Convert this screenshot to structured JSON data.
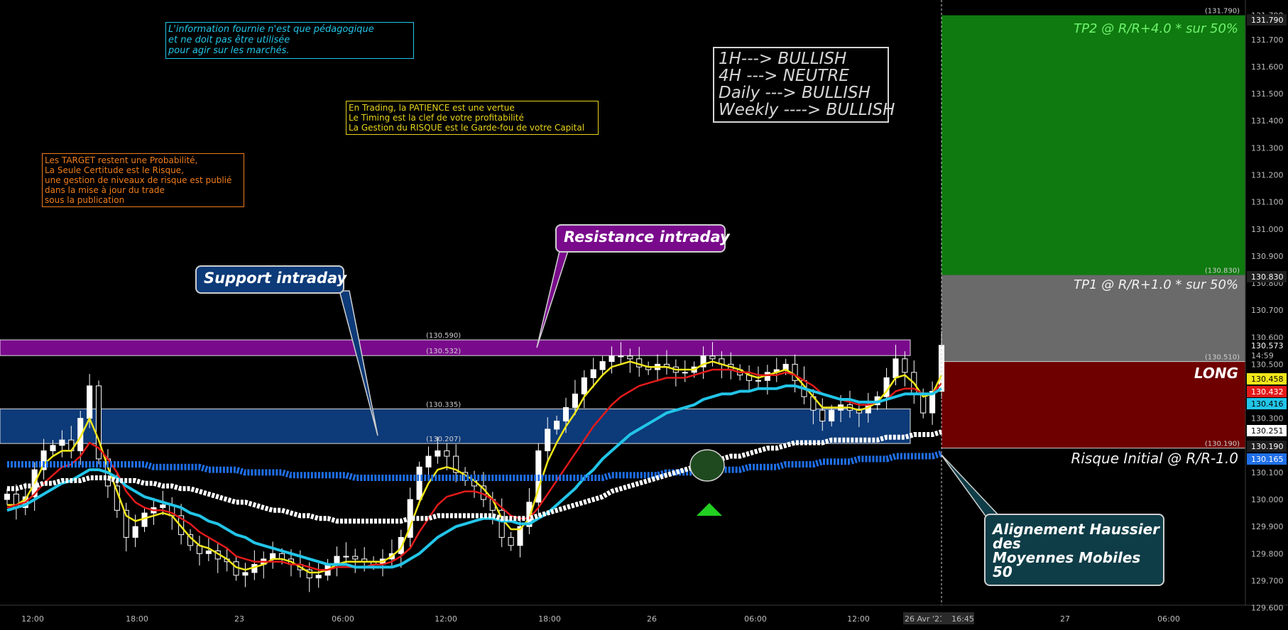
{
  "notes": {
    "cyan": "L'information fournie n'est que pédagogique\net ne doit pas être utilisée\npour agir sur les marchés.",
    "yellow": "En Trading, la PATIENCE est une vertue\nLe Timing est la clef de votre profitabilité\nLa Gestion du RISQUE est le Garde-fou de votre Capital",
    "orange": "Les TARGET restent une Probabilité,\nLa Seule Certitude est le Risque,\nune gestion de niveaux de risque est publié\ndans la mise à jour du trade\nsous la publication",
    "trend": "1H---> BULLISH\n4H ---> NEUTRE\nDaily ---> BULLISH\nWeekly ----> BULLISH"
  },
  "callouts": {
    "support": "Support intraday",
    "resistance": "Resistance intraday",
    "alignment": "Alignement Haussier\ndes\nMoyennes Mobiles\n50"
  },
  "zones": {
    "tp2": "TP2 @ R/R+4.0 * sur 50%",
    "tp1": "TP1 @ R/R+1.0 * sur 50%",
    "long": "LONG",
    "risk": "Risque Initial @ R/R-1.0"
  },
  "colors": {
    "background": "#000000",
    "tp2_zone": "#0f7a0f",
    "tp1_zone": "#6a6a6a",
    "risk_zone": "#6e0000",
    "resistance_zone": "#7a0a8c",
    "support_zone": "#0d3a78",
    "candle": "#ffffff",
    "ema_yellow": "#f2e71a",
    "ema_red": "#e41a1a",
    "ema_cyan": "#22c5e8",
    "ma_blue": "#1f6fe8",
    "ma_white": "#ffffff"
  },
  "chart_data": {
    "type": "line",
    "yaxis": {
      "range": [
        129.57,
        131.815
      ],
      "ticks": [
        "129.600",
        "129.700",
        "129.800",
        "129.900",
        "130.000",
        "130.100",
        "130.200",
        "130.300",
        "130.400",
        "130.500",
        "130.600",
        "130.700",
        "130.800",
        "130.900",
        "131.000",
        "131.100",
        "131.200",
        "131.300",
        "131.400",
        "131.500",
        "131.600",
        "131.700",
        "131.790"
      ]
    },
    "xaxis": {
      "ticks": [
        "12:00",
        "18:00",
        "23",
        "06:00",
        "12:00",
        "18:00",
        "26",
        "06:00",
        "12:00",
        "26 Avr '21",
        "16:45",
        "27",
        "06:00"
      ]
    },
    "price_tags": [
      {
        "value": "131.790",
        "color": "#1e1e1e",
        "text_color": "#ffffff"
      },
      {
        "value": "130.830",
        "color": "#1e1e1e",
        "text_color": "#ffffff"
      },
      {
        "value": "130.573",
        "color": "#000000",
        "text_color": "#ffffff"
      },
      {
        "value": "14:59",
        "color": "#000000",
        "text_color": "#bbbbbb"
      },
      {
        "value": "130.458",
        "color": "#f2e71a",
        "text_color": "#000000"
      },
      {
        "value": "130.432",
        "color": "#e41a1a",
        "text_color": "#ffffff"
      },
      {
        "value": "130.416",
        "color": "#22c5e8",
        "text_color": "#000000"
      },
      {
        "value": "130.251",
        "color": "#ffffff",
        "text_color": "#000000"
      },
      {
        "value": "130.190",
        "color": "#1e1e1e",
        "text_color": "#ffffff"
      },
      {
        "value": "130.165",
        "color": "#1f6fe8",
        "text_color": "#ffffff"
      }
    ],
    "zone_levels": [
      {
        "name": "tp2_top",
        "value": 131.79,
        "label": "(131.790)"
      },
      {
        "name": "tp1_top",
        "value": 130.83,
        "label": "(130.830)"
      },
      {
        "name": "entry",
        "value": 130.51,
        "label": "(130.510)"
      },
      {
        "name": "stop",
        "value": 130.19,
        "label": "(130.190)"
      }
    ],
    "hzones": [
      {
        "name": "resistance",
        "top": 130.59,
        "bottom": 130.532,
        "labels": [
          "(130.590)",
          "(130.532)"
        ]
      },
      {
        "name": "support",
        "top": 130.335,
        "bottom": 130.207,
        "labels": [
          "(130.335)",
          "(130.207)"
        ]
      }
    ],
    "price_close": [
      130.02,
      129.97,
      130.01,
      130.11,
      130.18,
      130.2,
      130.22,
      130.18,
      130.3,
      130.42,
      130.15,
      130.05,
      129.96,
      129.86,
      129.9,
      129.95,
      129.97,
      129.98,
      129.94,
      129.87,
      129.83,
      129.8,
      129.81,
      129.78,
      129.77,
      129.72,
      129.73,
      129.76,
      129.78,
      129.8,
      129.78,
      129.76,
      129.74,
      129.71,
      129.72,
      129.76,
      129.79,
      129.79,
      129.78,
      129.77,
      129.76,
      129.78,
      129.8,
      129.86,
      130.0,
      130.12,
      130.16,
      130.18,
      130.16,
      130.1,
      130.07,
      130.05,
      130.0,
      129.96,
      129.86,
      129.83,
      129.9,
      129.99,
      130.18,
      130.26,
      130.29,
      130.34,
      130.39,
      130.45,
      130.48,
      130.51,
      130.53,
      130.53,
      130.52,
      130.49,
      130.48,
      130.5,
      130.49,
      130.47,
      130.47,
      130.49,
      130.53,
      130.52,
      130.5,
      130.48,
      130.46,
      130.44,
      130.44,
      130.47,
      130.48,
      130.5,
      130.44,
      130.38,
      130.33,
      130.29,
      130.33,
      130.35,
      130.33,
      130.32,
      130.35,
      130.38,
      130.45,
      130.52,
      130.47,
      130.39,
      130.32,
      130.4,
      130.57
    ],
    "series": [
      {
        "name": "EMA fast",
        "color": "#f2e71a",
        "values": [
          129.98,
          129.98,
          130.0,
          130.06,
          130.13,
          130.16,
          130.18,
          130.18,
          130.23,
          130.3,
          130.22,
          130.12,
          130.03,
          129.94,
          129.92,
          129.93,
          129.94,
          129.95,
          129.94,
          129.9,
          129.86,
          129.83,
          129.82,
          129.8,
          129.78,
          129.75,
          129.74,
          129.75,
          129.76,
          129.78,
          129.78,
          129.77,
          129.75,
          129.73,
          129.73,
          129.74,
          129.76,
          129.77,
          129.77,
          129.77,
          129.77,
          129.77,
          129.79,
          129.82,
          129.9,
          129.99,
          130.06,
          130.11,
          130.12,
          130.11,
          130.09,
          130.07,
          130.04,
          130.0,
          129.93,
          129.89,
          129.89,
          129.93,
          130.04,
          130.14,
          130.21,
          130.27,
          130.32,
          130.38,
          130.42,
          130.46,
          130.49,
          130.5,
          130.51,
          130.5,
          130.49,
          130.49,
          130.49,
          130.48,
          130.48,
          130.48,
          130.5,
          130.51,
          130.5,
          130.49,
          130.48,
          130.46,
          130.45,
          130.46,
          130.47,
          130.48,
          130.46,
          130.42,
          130.38,
          130.34,
          130.34,
          130.34,
          130.34,
          130.33,
          130.34,
          130.36,
          130.4,
          130.45,
          130.46,
          130.43,
          130.38,
          130.39,
          130.46
        ]
      },
      {
        "name": "EMA medium",
        "color": "#e41a1a",
        "values": [
          129.97,
          129.98,
          129.99,
          130.02,
          130.06,
          130.09,
          130.12,
          130.13,
          130.16,
          130.21,
          130.19,
          130.15,
          130.1,
          130.03,
          129.99,
          129.97,
          129.96,
          129.96,
          129.95,
          129.93,
          129.91,
          129.88,
          129.86,
          129.84,
          129.82,
          129.79,
          129.78,
          129.77,
          129.77,
          129.77,
          129.77,
          129.76,
          129.76,
          129.75,
          129.74,
          129.74,
          129.75,
          129.75,
          129.75,
          129.75,
          129.76,
          129.76,
          129.77,
          129.79,
          129.82,
          129.88,
          129.93,
          129.98,
          130.01,
          130.02,
          130.03,
          130.03,
          130.02,
          130.0,
          129.97,
          129.94,
          129.93,
          129.93,
          129.97,
          130.02,
          130.07,
          130.12,
          130.17,
          130.22,
          130.27,
          130.31,
          130.35,
          130.38,
          130.4,
          130.42,
          130.43,
          130.44,
          130.45,
          130.45,
          130.45,
          130.46,
          130.47,
          130.48,
          130.48,
          130.48,
          130.47,
          130.47,
          130.46,
          130.46,
          130.46,
          130.47,
          130.46,
          130.44,
          130.42,
          130.39,
          130.38,
          130.37,
          130.36,
          130.35,
          130.35,
          130.36,
          130.37,
          130.4,
          130.41,
          130.41,
          130.39,
          130.39,
          130.43
        ]
      },
      {
        "name": "EMA slow",
        "color": "#22c5e8",
        "values": [
          129.96,
          129.97,
          129.98,
          130.0,
          130.02,
          130.04,
          130.06,
          130.07,
          130.09,
          130.11,
          130.11,
          130.1,
          130.08,
          130.05,
          130.03,
          130.01,
          130.0,
          129.99,
          129.98,
          129.97,
          129.95,
          129.94,
          129.92,
          129.91,
          129.89,
          129.87,
          129.86,
          129.84,
          129.83,
          129.82,
          129.81,
          129.8,
          129.79,
          129.78,
          129.77,
          129.76,
          129.76,
          129.76,
          129.75,
          129.75,
          129.75,
          129.75,
          129.75,
          129.76,
          129.78,
          129.8,
          129.83,
          129.86,
          129.88,
          129.9,
          129.91,
          129.92,
          129.93,
          129.93,
          129.92,
          129.92,
          129.91,
          129.91,
          129.93,
          129.95,
          129.98,
          130.01,
          130.04,
          130.08,
          130.11,
          130.15,
          130.18,
          130.21,
          130.24,
          130.26,
          130.28,
          130.3,
          130.32,
          130.33,
          130.34,
          130.35,
          130.37,
          130.38,
          130.39,
          130.39,
          130.4,
          130.4,
          130.41,
          130.41,
          130.41,
          130.42,
          130.42,
          130.41,
          130.4,
          130.39,
          130.38,
          130.37,
          130.37,
          130.36,
          130.36,
          130.36,
          130.37,
          130.38,
          130.39,
          130.39,
          130.39,
          130.39,
          130.41
        ]
      },
      {
        "name": "MA blue",
        "color": "#1f6fe8",
        "values": [
          130.13,
          130.13,
          130.13,
          130.13,
          130.13,
          130.13,
          130.13,
          130.13,
          130.13,
          130.13,
          130.13,
          130.13,
          130.13,
          130.13,
          130.13,
          130.13,
          130.12,
          130.12,
          130.12,
          130.12,
          130.12,
          130.12,
          130.11,
          130.11,
          130.11,
          130.11,
          130.1,
          130.1,
          130.1,
          130.1,
          130.1,
          130.09,
          130.09,
          130.09,
          130.09,
          130.09,
          130.09,
          130.09,
          130.08,
          130.08,
          130.08,
          130.08,
          130.08,
          130.08,
          130.08,
          130.08,
          130.08,
          130.08,
          130.08,
          130.08,
          130.08,
          130.08,
          130.08,
          130.08,
          130.08,
          130.08,
          130.08,
          130.08,
          130.08,
          130.08,
          130.08,
          130.08,
          130.08,
          130.08,
          130.08,
          130.08,
          130.09,
          130.09,
          130.09,
          130.09,
          130.09,
          130.09,
          130.1,
          130.1,
          130.1,
          130.1,
          130.1,
          130.11,
          130.11,
          130.11,
          130.11,
          130.12,
          130.12,
          130.12,
          130.12,
          130.13,
          130.13,
          130.13,
          130.13,
          130.14,
          130.14,
          130.14,
          130.14,
          130.15,
          130.15,
          130.15,
          130.15,
          130.16,
          130.16,
          130.16,
          130.16,
          130.16,
          130.17
        ]
      },
      {
        "name": "MA white",
        "color": "#ffffff",
        "values": [
          130.04,
          130.04,
          130.05,
          130.05,
          130.06,
          130.06,
          130.07,
          130.07,
          130.07,
          130.08,
          130.08,
          130.08,
          130.07,
          130.07,
          130.07,
          130.06,
          130.06,
          130.05,
          130.05,
          130.04,
          130.04,
          130.03,
          130.02,
          130.01,
          130.0,
          129.99,
          129.99,
          129.98,
          129.97,
          129.96,
          129.96,
          129.95,
          129.94,
          129.94,
          129.93,
          129.93,
          129.92,
          129.92,
          129.92,
          129.92,
          129.92,
          129.92,
          129.92,
          129.92,
          129.93,
          129.93,
          129.93,
          129.94,
          129.94,
          129.94,
          129.94,
          129.94,
          129.94,
          129.94,
          129.93,
          129.93,
          129.93,
          129.93,
          129.94,
          129.95,
          129.96,
          129.97,
          129.98,
          129.99,
          130.0,
          130.01,
          130.03,
          130.04,
          130.05,
          130.06,
          130.07,
          130.08,
          130.09,
          130.1,
          130.11,
          130.12,
          130.13,
          130.14,
          130.15,
          130.16,
          130.16,
          130.17,
          130.18,
          130.19,
          130.19,
          130.2,
          130.21,
          130.21,
          130.21,
          130.21,
          130.22,
          130.22,
          130.22,
          130.22,
          130.22,
          130.22,
          130.23,
          130.23,
          130.23,
          130.24,
          130.24,
          130.24,
          130.25
        ]
      }
    ]
  }
}
